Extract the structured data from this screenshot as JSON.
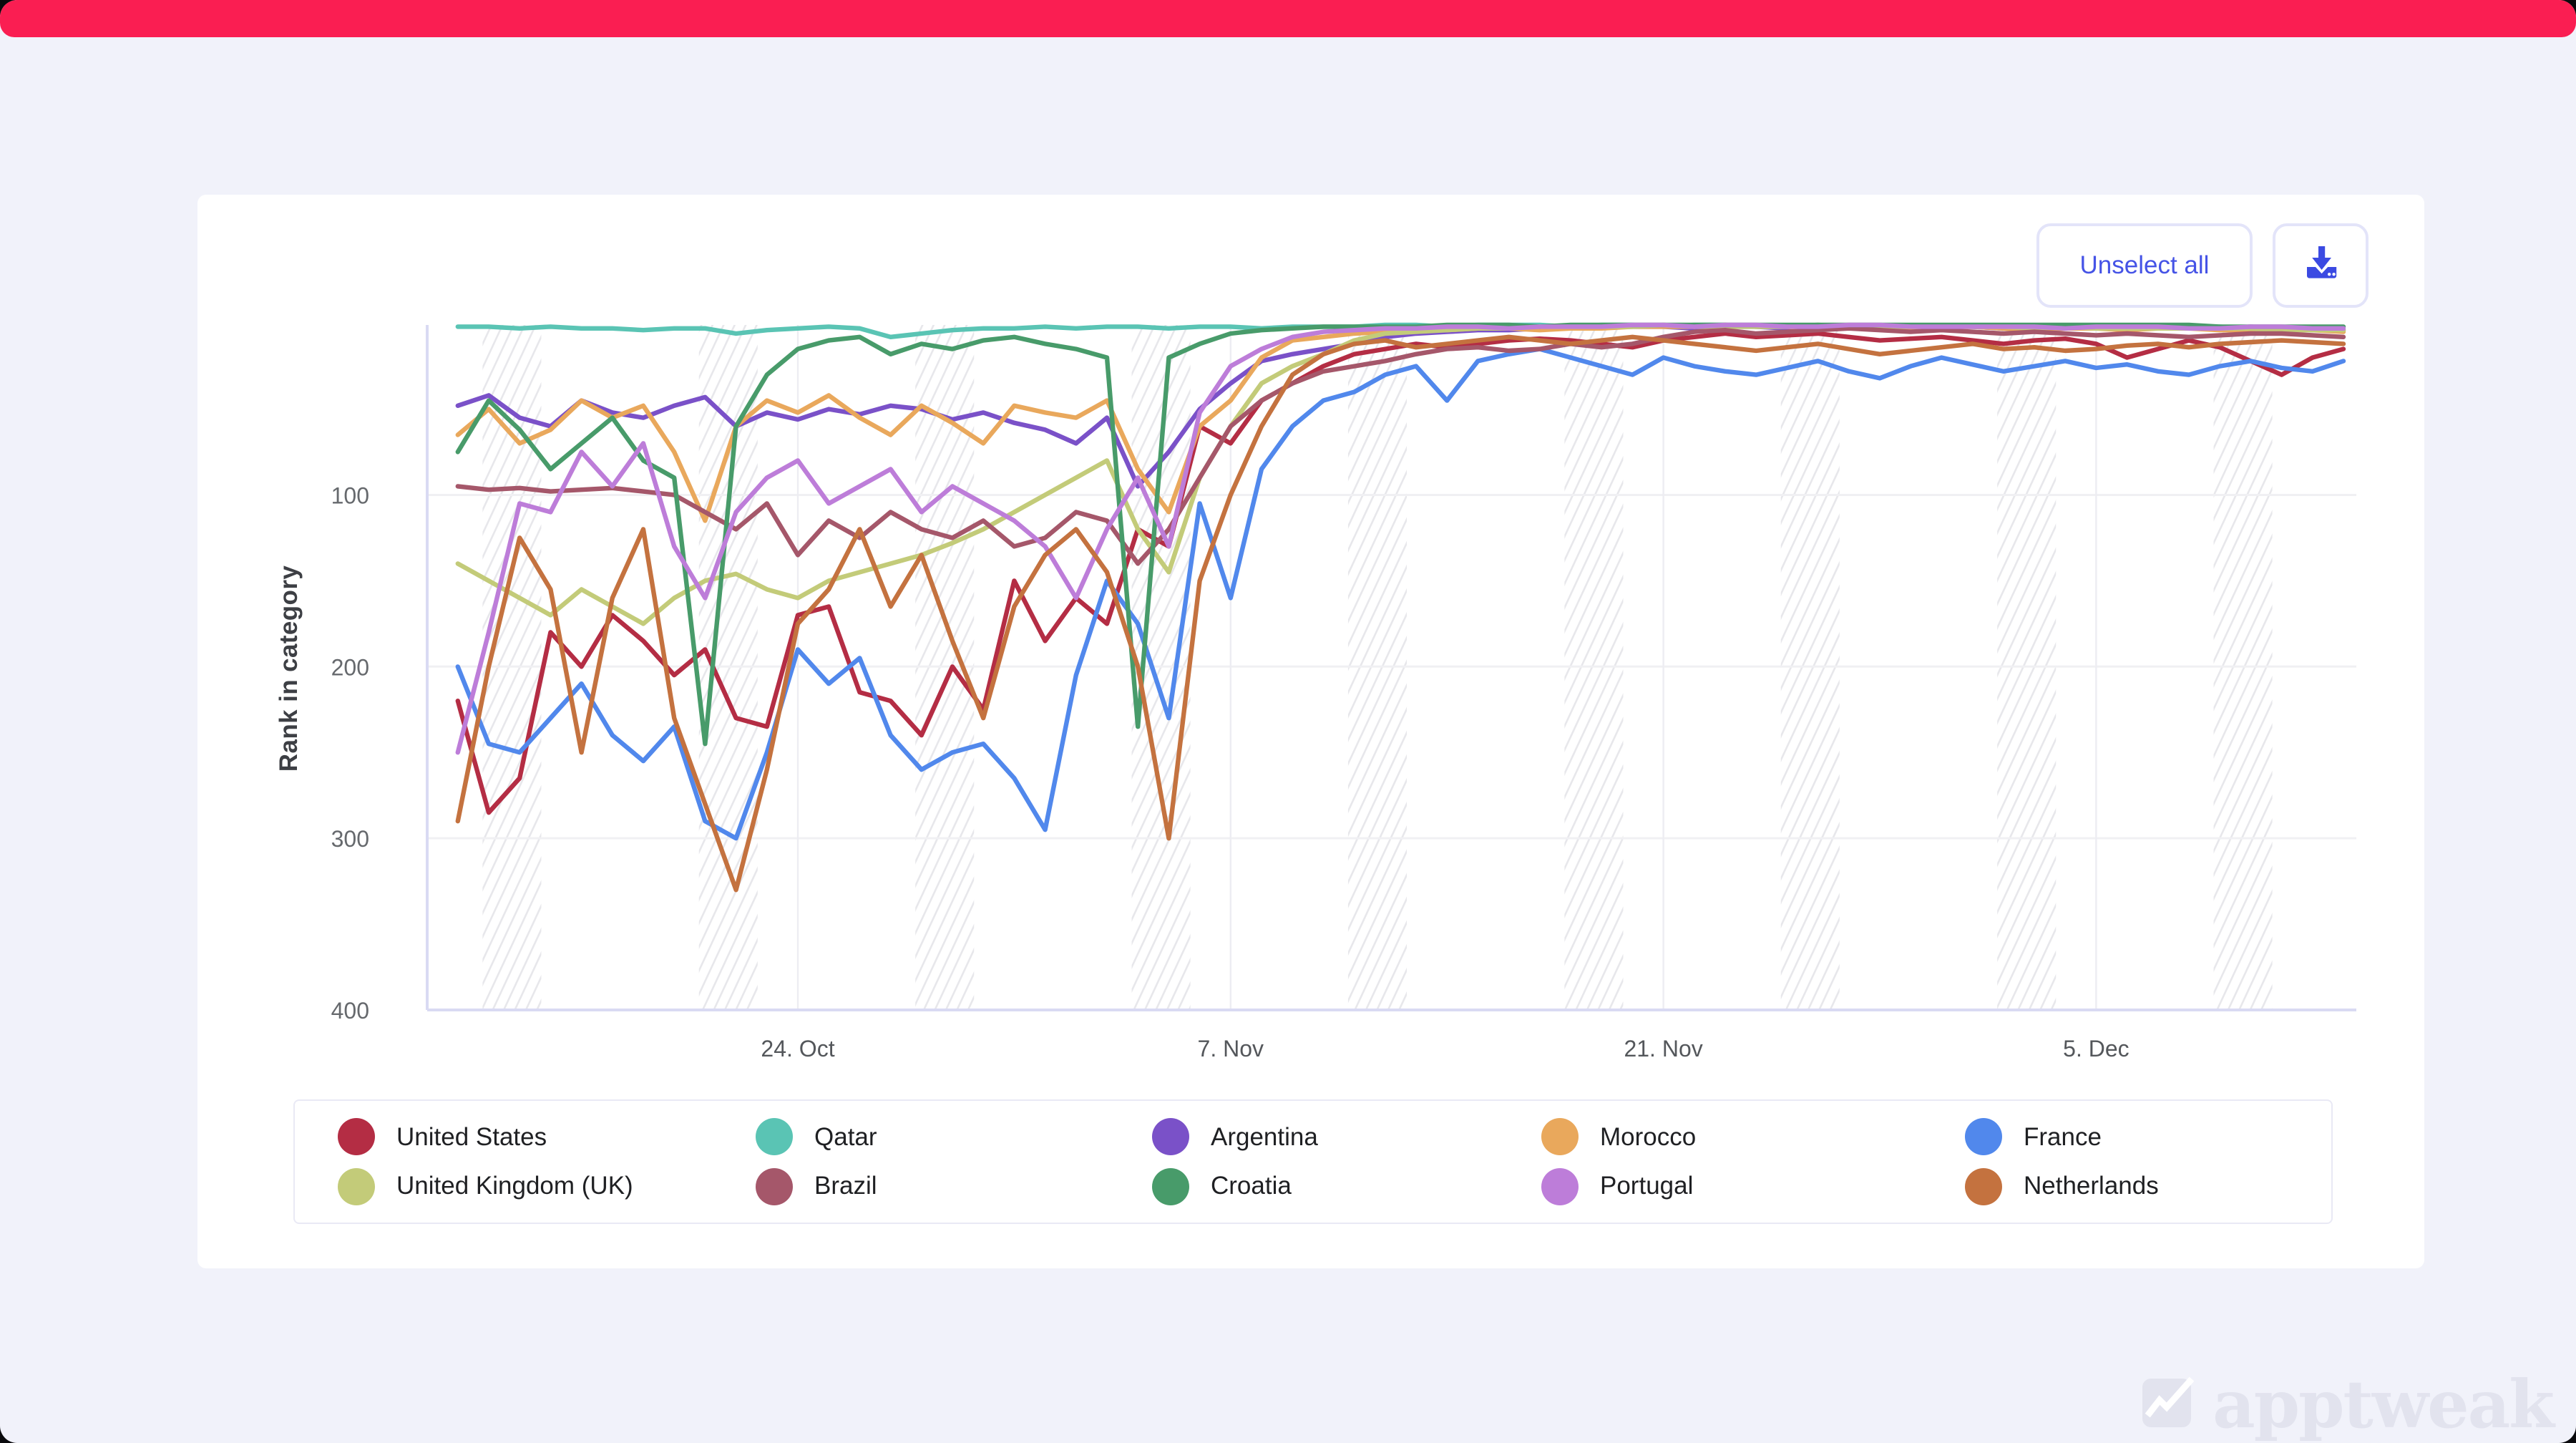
{
  "window": {
    "topbar_color": "#fa1e52",
    "page_background": "#f1f2fa",
    "card_background": "#ffffff"
  },
  "toolbar": {
    "unselect_label": "Unselect all",
    "download_icon": "download-tray-icon",
    "accent_color": "#4553e6"
  },
  "watermark": {
    "text": "apptweak",
    "logo_icon": "apptweak-zigzag-logo",
    "color": "#e2e3ee"
  },
  "chart_data": {
    "type": "line",
    "title": "",
    "ylabel": "Rank in category",
    "y_inverted": true,
    "ylim": [
      1,
      400
    ],
    "yticks": [
      100,
      200,
      300,
      400
    ],
    "x_unit": "day",
    "x_start_date": "13 Oct",
    "x_end_date": "13 Dec",
    "xticks": [
      {
        "day": 11,
        "label": "24. Oct"
      },
      {
        "day": 25,
        "label": "7. Nov"
      },
      {
        "day": 39,
        "label": "21. Nov"
      },
      {
        "day": 53,
        "label": "5. Dec"
      }
    ],
    "weekend_bands": {
      "first_start_day": 0.8,
      "width_days": 1.9,
      "period_days": 7,
      "count": 9,
      "hatch_color": "#e7e7eb"
    },
    "grid": {
      "h_color": "#f0f0f3",
      "v_color": "#ededf2",
      "axis_color": "#d9daf3"
    },
    "legend_position": "bottom",
    "series": [
      {
        "name": "United States",
        "color": "#b42d44",
        "values": [
          220,
          285,
          265,
          180,
          200,
          170,
          185,
          205,
          190,
          230,
          235,
          170,
          165,
          215,
          220,
          240,
          200,
          225,
          150,
          185,
          160,
          175,
          120,
          130,
          60,
          70,
          45,
          35,
          25,
          18,
          15,
          12,
          14,
          12,
          10,
          9,
          10,
          12,
          14,
          10,
          8,
          6,
          8,
          7,
          6,
          8,
          10,
          9,
          8,
          10,
          12,
          10,
          9,
          12,
          20,
          15,
          10,
          14,
          22,
          30,
          20,
          15
        ]
      },
      {
        "name": "Qatar",
        "color": "#5ac4b4",
        "values": [
          2,
          2,
          3,
          2,
          3,
          3,
          4,
          3,
          3,
          6,
          4,
          3,
          2,
          3,
          8,
          6,
          4,
          3,
          3,
          2,
          3,
          2,
          2,
          3,
          2,
          2,
          3,
          2,
          2,
          2,
          1,
          1,
          2,
          1,
          1,
          1,
          2,
          1,
          1,
          2,
          1,
          1,
          2,
          2,
          1,
          2,
          2,
          2,
          2,
          2,
          2,
          3,
          2,
          2,
          2,
          3,
          3,
          2,
          3,
          3,
          4,
          4
        ]
      },
      {
        "name": "Argentina",
        "color": "#7a51c8",
        "values": [
          48,
          42,
          55,
          60,
          45,
          52,
          55,
          48,
          43,
          60,
          52,
          56,
          50,
          53,
          48,
          50,
          56,
          52,
          58,
          62,
          70,
          55,
          95,
          75,
          50,
          35,
          22,
          18,
          15,
          12,
          8,
          6,
          5,
          4,
          4,
          3,
          3,
          2,
          2,
          2,
          3,
          2,
          2,
          3,
          2,
          2,
          3,
          2,
          2,
          2,
          3,
          2,
          2,
          3,
          2,
          2,
          3,
          3,
          2,
          3,
          3,
          4
        ]
      },
      {
        "name": "Morocco",
        "color": "#e9a85c",
        "values": [
          65,
          50,
          70,
          62,
          45,
          55,
          48,
          75,
          115,
          60,
          45,
          52,
          42,
          55,
          65,
          48,
          58,
          70,
          48,
          52,
          55,
          45,
          85,
          110,
          60,
          45,
          20,
          10,
          8,
          6,
          5,
          4,
          4,
          3,
          3,
          4,
          3,
          3,
          2,
          2,
          2,
          1,
          2,
          2,
          3,
          2,
          2,
          3,
          3,
          2,
          3,
          4,
          3,
          3,
          4,
          3,
          3,
          4,
          4,
          3,
          4,
          5
        ]
      },
      {
        "name": "France",
        "color": "#5188ec",
        "values": [
          200,
          245,
          250,
          230,
          210,
          240,
          255,
          235,
          290,
          300,
          250,
          190,
          210,
          195,
          240,
          260,
          250,
          245,
          265,
          295,
          205,
          150,
          175,
          230,
          105,
          160,
          85,
          60,
          45,
          40,
          30,
          25,
          45,
          22,
          18,
          15,
          20,
          25,
          30,
          20,
          25,
          28,
          30,
          26,
          22,
          28,
          32,
          25,
          20,
          24,
          28,
          25,
          22,
          26,
          24,
          28,
          30,
          25,
          22,
          26,
          28,
          22
        ]
      },
      {
        "name": "United Kingdom (UK)",
        "color": "#c3cb79",
        "values": [
          140,
          150,
          160,
          170,
          155,
          165,
          175,
          160,
          150,
          146,
          155,
          160,
          150,
          145,
          140,
          135,
          128,
          120,
          110,
          100,
          90,
          80,
          120,
          145,
          90,
          60,
          35,
          25,
          18,
          10,
          6,
          5,
          4,
          3,
          3,
          2,
          2,
          2,
          2,
          1,
          2,
          2,
          2,
          2,
          1,
          2,
          2,
          2,
          2,
          2,
          2,
          3,
          2,
          3,
          3,
          3,
          3,
          3,
          3,
          4,
          4,
          4
        ]
      },
      {
        "name": "Brazil",
        "color": "#a5576a",
        "values": [
          95,
          97,
          96,
          98,
          97,
          96,
          98,
          100,
          110,
          120,
          105,
          135,
          115,
          125,
          110,
          120,
          125,
          115,
          130,
          125,
          110,
          115,
          140,
          120,
          90,
          60,
          45,
          35,
          28,
          25,
          22,
          18,
          15,
          14,
          16,
          15,
          12,
          14,
          12,
          8,
          5,
          4,
          6,
          5,
          4,
          3,
          4,
          5,
          4,
          5,
          6,
          5,
          6,
          7,
          6,
          7,
          8,
          7,
          6,
          6,
          7,
          8
        ]
      },
      {
        "name": "Croatia",
        "color": "#489b6a",
        "values": [
          75,
          45,
          62,
          85,
          70,
          55,
          80,
          90,
          245,
          60,
          30,
          15,
          10,
          8,
          18,
          12,
          15,
          10,
          8,
          12,
          15,
          20,
          235,
          20,
          12,
          6,
          4,
          3,
          2,
          2,
          2,
          2,
          1,
          1,
          1,
          2,
          1,
          1,
          1,
          1,
          1,
          1,
          1,
          1,
          1,
          1,
          1,
          1,
          1,
          1,
          1,
          1,
          1,
          1,
          1,
          1,
          1,
          2,
          2,
          2,
          2,
          2
        ]
      },
      {
        "name": "Portugal",
        "color": "#bd7dd9",
        "values": [
          250,
          180,
          105,
          110,
          75,
          95,
          70,
          130,
          160,
          110,
          90,
          80,
          105,
          95,
          85,
          110,
          95,
          105,
          115,
          130,
          160,
          120,
          90,
          130,
          52,
          25,
          15,
          8,
          5,
          4,
          3,
          3,
          2,
          2,
          3,
          2,
          2,
          2,
          1,
          1,
          2,
          1,
          1,
          2,
          2,
          1,
          1,
          2,
          2,
          2,
          2,
          2,
          3,
          2,
          2,
          2,
          3,
          3,
          2,
          2,
          3,
          3
        ]
      },
      {
        "name": "Netherlands",
        "color": "#c4723f",
        "values": [
          290,
          200,
          125,
          155,
          250,
          160,
          120,
          230,
          280,
          330,
          260,
          175,
          155,
          120,
          165,
          135,
          185,
          230,
          165,
          135,
          120,
          145,
          200,
          300,
          150,
          100,
          60,
          30,
          18,
          12,
          10,
          14,
          12,
          10,
          8,
          10,
          12,
          10,
          8,
          10,
          12,
          14,
          16,
          14,
          12,
          15,
          18,
          16,
          14,
          12,
          15,
          14,
          16,
          15,
          13,
          12,
          14,
          12,
          11,
          10,
          11,
          12
        ]
      }
    ]
  }
}
